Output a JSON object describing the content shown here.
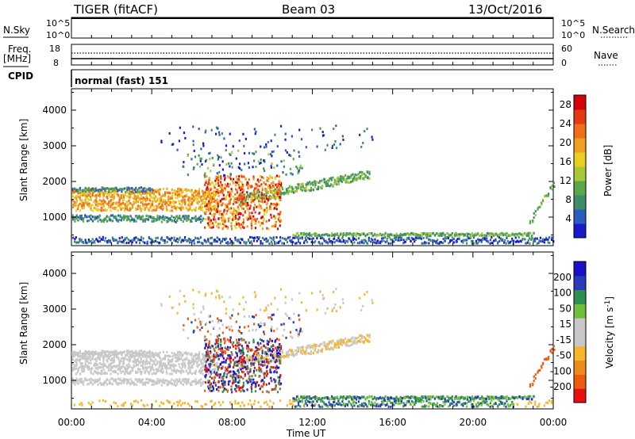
{
  "header": {
    "title": "TIGER (fitACF)",
    "beam": "Beam 03",
    "date": "13/Oct/2016"
  },
  "left_labels": {
    "nsky": "N.Sky",
    "freq_line1": "Freq.",
    "freq_line2": "[MHz]",
    "cpid": "CPID"
  },
  "right_labels": {
    "nsearch": "N.Search",
    "nave": "Nave"
  },
  "cpid_text": "normal (fast) 151",
  "colors": {
    "power_scale": [
      "#1a1acc",
      "#2a5dbf",
      "#3f8c6a",
      "#5aa84a",
      "#a8c83a",
      "#e8d020",
      "#f0a020",
      "#ef6e16",
      "#e63a14",
      "#d4000a"
    ],
    "velocity_scale": [
      "#e81010",
      "#ee5a10",
      "#f08a1a",
      "#f5b62a",
      "#c8c8c8",
      "#c8c8c8",
      "#6fbf3a",
      "#2e8f52",
      "#2a3bb8",
      "#1a10c8"
    ],
    "gray_ground": "#c8c8c8"
  },
  "chart_data": [
    {
      "type": "line",
      "name": "nsky-nsearch",
      "ylabel": "N.Sky",
      "y2label": "N.Search",
      "ytick_labels": [
        "10^5",
        "10^0"
      ],
      "y2tick_labels": [
        "10^5",
        "10^0"
      ],
      "x": [
        0,
        24
      ],
      "series": [
        {
          "values": [
            100000,
            100000
          ]
        }
      ]
    },
    {
      "type": "line",
      "name": "freq-nave",
      "ylabel": "Freq. [MHz]",
      "y2label": "Nave",
      "yticks": [
        8,
        18
      ],
      "y2ticks": [
        0,
        60
      ],
      "x": [
        0,
        24
      ],
      "series": [
        {
          "values": [
            9.8,
            9.8
          ]
        },
        {
          "values": [
            13,
            13
          ]
        }
      ]
    },
    {
      "type": "heatmap",
      "name": "power",
      "ylabel": "Slant Range [km]",
      "yticks": [
        1000,
        2000,
        3000,
        4000
      ],
      "ylim": [
        200,
        4600
      ],
      "xlim": [
        0,
        24
      ],
      "colorbar_label": "Power [dB]",
      "colorbar_ticks": [
        4,
        8,
        12,
        16,
        20,
        24,
        28
      ],
      "colorbar_range": [
        0,
        30
      ],
      "grid": false
    },
    {
      "type": "heatmap",
      "name": "velocity",
      "ylabel": "Slant Range [km]",
      "xlabel": "Time UT",
      "yticks": [
        1000,
        2000,
        3000,
        4000
      ],
      "ylim": [
        200,
        4600
      ],
      "xlim": [
        0,
        24
      ],
      "xtick_labels": [
        "00:00",
        "04:00",
        "08:00",
        "12:00",
        "16:00",
        "20:00",
        "00:00"
      ],
      "colorbar_label": "Velocity [m s-1]",
      "colorbar_ticks": [
        -200,
        -100,
        -50,
        -15,
        15,
        50,
        100,
        200
      ],
      "grid": false
    }
  ]
}
